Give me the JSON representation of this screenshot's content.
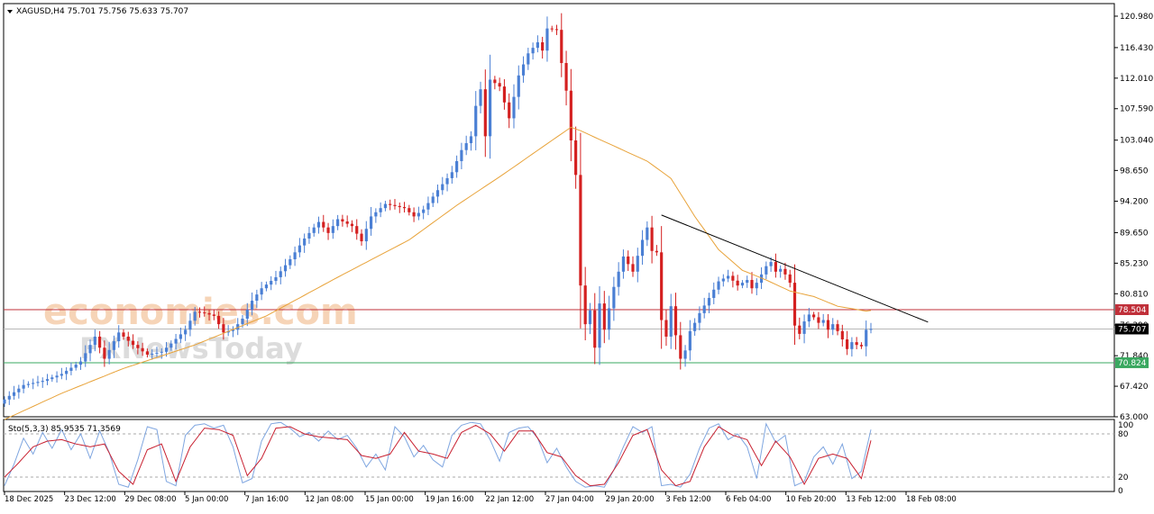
{
  "header": {
    "symbol_line": "XAGUSD,H4  75.701 75.756 75.633 75.707"
  },
  "watermarks": {
    "economies": "economies.com",
    "fxnews": "FXNewsToday"
  },
  "colors": {
    "bull": "#4a7fd4",
    "bear": "#d42020",
    "ma": "#e8a33a",
    "resistance": "#c0303a",
    "support": "#3aa860",
    "current": "#b8b8b8",
    "trendline": "#000000",
    "stoch_main": "#7fa6e0",
    "stoch_signal": "#c82030"
  },
  "chart_data": [
    {
      "type": "candlestick",
      "title": "XAGUSD,H4",
      "ohlc_header": {
        "open": 75.701,
        "high": 75.756,
        "low": 75.633,
        "close": 75.707
      },
      "ylim": [
        63.0,
        122.8
      ],
      "y_ticks": [
        "120.980",
        "116.430",
        "112.010",
        "107.590",
        "103.040",
        "98.650",
        "94.200",
        "89.650",
        "85.230",
        "80.810",
        "76.290",
        "71.840",
        "67.420",
        "63.000"
      ],
      "x_labels": [
        "18 Dec 2025",
        "23 Dec 12:00",
        "29 Dec 08:00",
        "5 Jan 00:00",
        "7 Jan 16:00",
        "12 Jan 08:00",
        "15 Jan 00:00",
        "19 Jan 16:00",
        "22 Jan 12:00",
        "27 Jan 04:00",
        "29 Jan 20:00",
        "3 Feb 12:00",
        "6 Feb 04:00",
        "10 Feb 20:00",
        "13 Feb 12:00",
        "18 Feb 08:00"
      ],
      "anchors": [
        [
          0,
          65.5
        ],
        [
          4,
          67.6
        ],
        [
          8,
          68.2
        ],
        [
          12,
          69.2
        ],
        [
          16,
          71.0
        ],
        [
          19,
          74.6
        ],
        [
          21,
          71.4
        ],
        [
          24,
          75.2
        ],
        [
          27,
          73.4
        ],
        [
          30,
          72.0
        ],
        [
          33,
          72.4
        ],
        [
          35,
          73.6
        ],
        [
          38,
          75.6
        ],
        [
          40,
          78.2
        ],
        [
          42,
          78.0
        ],
        [
          44,
          77.6
        ],
        [
          46,
          75.2
        ],
        [
          48,
          75.6
        ],
        [
          50,
          77.2
        ],
        [
          52,
          79.8
        ],
        [
          54,
          81.6
        ],
        [
          57,
          83.2
        ],
        [
          60,
          85.8
        ],
        [
          63,
          88.8
        ],
        [
          66,
          91.2
        ],
        [
          68,
          89.6
        ],
        [
          70,
          91.6
        ],
        [
          73,
          90.6
        ],
        [
          75,
          88.4
        ],
        [
          77,
          92.0
        ],
        [
          80,
          93.8
        ],
        [
          84,
          93.2
        ],
        [
          86,
          92.0
        ],
        [
          88,
          93.0
        ],
        [
          91,
          95.8
        ],
        [
          94,
          98.4
        ],
        [
          96,
          101.6
        ],
        [
          98,
          103.6
        ],
        [
          99,
          108.0
        ],
        [
          100,
          110.4
        ],
        [
          101,
          103.6
        ],
        [
          102,
          111.8
        ],
        [
          104,
          110.8
        ],
        [
          106,
          106.2
        ],
        [
          108,
          112.4
        ],
        [
          110,
          115.6
        ],
        [
          112,
          117.2
        ],
        [
          113,
          116.0
        ],
        [
          114,
          119.2
        ],
        [
          116,
          119.0
        ],
        [
          117,
          114.2
        ],
        [
          118,
          110.2
        ],
        [
          119,
          103.0
        ],
        [
          120,
          98.0
        ],
        [
          121,
          82.0
        ],
        [
          122,
          76.4
        ],
        [
          123,
          78.4
        ],
        [
          124,
          73.0
        ],
        [
          125,
          79.4
        ],
        [
          126,
          75.6
        ],
        [
          128,
          81.8
        ],
        [
          130,
          86.2
        ],
        [
          132,
          84.0
        ],
        [
          134,
          88.6
        ],
        [
          135,
          90.4
        ],
        [
          136,
          87.0
        ],
        [
          137,
          86.8
        ],
        [
          138,
          77.0
        ],
        [
          139,
          74.6
        ],
        [
          140,
          79.0
        ],
        [
          141,
          74.8
        ],
        [
          142,
          71.4
        ],
        [
          143,
          72.6
        ],
        [
          144,
          75.4
        ],
        [
          145,
          76.6
        ],
        [
          146,
          78.0
        ],
        [
          148,
          80.2
        ],
        [
          150,
          82.6
        ],
        [
          152,
          83.4
        ],
        [
          154,
          82.0
        ],
        [
          156,
          82.8
        ],
        [
          157,
          81.6
        ],
        [
          158,
          82.4
        ],
        [
          160,
          84.8
        ],
        [
          161,
          85.4
        ],
        [
          162,
          84.0
        ],
        [
          163,
          84.4
        ],
        [
          164,
          83.6
        ],
        [
          165,
          82.4
        ],
        [
          166,
          76.2
        ],
        [
          167,
          75.0
        ],
        [
          168,
          76.8
        ],
        [
          169,
          77.8
        ],
        [
          170,
          77.4
        ],
        [
          171,
          76.6
        ],
        [
          172,
          77.0
        ],
        [
          173,
          75.6
        ],
        [
          174,
          76.4
        ],
        [
          175,
          75.4
        ],
        [
          176,
          74.2
        ],
        [
          177,
          72.8
        ],
        [
          178,
          73.8
        ],
        [
          179,
          73.4
        ],
        [
          180,
          73.2
        ],
        [
          181,
          75.6
        ],
        [
          182,
          75.707
        ]
      ],
      "series": [
        {
          "name": "",
          "type": "ma",
          "values": [
            [
              0,
              62.6
            ],
            [
              12,
              66.4
            ],
            [
              25,
              70.0
            ],
            [
              40,
              73.4
            ],
            [
              55,
              77.6
            ],
            [
              70,
              83.2
            ],
            [
              85,
              88.6
            ],
            [
              95,
              93.6
            ],
            [
              105,
              98.2
            ],
            [
              115,
              103.0
            ],
            [
              119,
              104.9
            ],
            [
              121,
              104.4
            ],
            [
              128,
              102.2
            ],
            [
              135,
              100.0
            ],
            [
              140,
              97.5
            ],
            [
              145,
              92.0
            ],
            [
              150,
              87.2
            ],
            [
              155,
              84.2
            ],
            [
              160,
              82.8
            ],
            [
              165,
              81.2
            ],
            [
              170,
              80.4
            ],
            [
              175,
              79.0
            ],
            [
              181,
              78.3
            ]
          ]
        }
      ],
      "horizontal_lines": [
        {
          "label": "78.504",
          "value": 78.504,
          "role": "resistance"
        },
        {
          "label": "75.707",
          "value": 75.707,
          "role": "current"
        },
        {
          "label": "70.824",
          "value": 70.824,
          "role": "support"
        }
      ],
      "trendline": {
        "from": [
          138,
          92.2
        ],
        "to": [
          194,
          76.7
        ]
      }
    },
    {
      "type": "line",
      "title": "Sto(5,3,3) 85.9535 71.3569",
      "ylim": [
        0,
        100
      ],
      "y_ticks": [
        "100",
        "80",
        "20",
        "0"
      ],
      "levels": [
        80,
        20
      ],
      "main_anchors": [
        [
          0,
          8
        ],
        [
          2,
          38
        ],
        [
          4,
          74
        ],
        [
          6,
          52
        ],
        [
          8,
          82
        ],
        [
          10,
          60
        ],
        [
          12,
          86
        ],
        [
          14,
          58
        ],
        [
          16,
          80
        ],
        [
          18,
          46
        ],
        [
          20,
          84
        ],
        [
          22,
          54
        ],
        [
          24,
          10
        ],
        [
          26,
          6
        ],
        [
          28,
          44
        ],
        [
          30,
          90
        ],
        [
          32,
          86
        ],
        [
          34,
          14
        ],
        [
          36,
          8
        ],
        [
          38,
          78
        ],
        [
          40,
          92
        ],
        [
          42,
          94
        ],
        [
          44,
          88
        ],
        [
          46,
          92
        ],
        [
          48,
          62
        ],
        [
          50,
          12
        ],
        [
          52,
          18
        ],
        [
          54,
          70
        ],
        [
          56,
          94
        ],
        [
          58,
          96
        ],
        [
          60,
          88
        ],
        [
          62,
          76
        ],
        [
          64,
          82
        ],
        [
          66,
          70
        ],
        [
          68,
          84
        ],
        [
          70,
          72
        ],
        [
          72,
          78
        ],
        [
          74,
          60
        ],
        [
          76,
          34
        ],
        [
          78,
          52
        ],
        [
          80,
          30
        ],
        [
          82,
          90
        ],
        [
          84,
          76
        ],
        [
          86,
          48
        ],
        [
          88,
          64
        ],
        [
          90,
          44
        ],
        [
          92,
          34
        ],
        [
          94,
          78
        ],
        [
          96,
          92
        ],
        [
          98,
          96
        ],
        [
          100,
          94
        ],
        [
          102,
          72
        ],
        [
          104,
          42
        ],
        [
          106,
          82
        ],
        [
          108,
          88
        ],
        [
          110,
          90
        ],
        [
          112,
          74
        ],
        [
          114,
          40
        ],
        [
          116,
          60
        ],
        [
          118,
          34
        ],
        [
          120,
          14
        ],
        [
          122,
          6
        ],
        [
          124,
          8
        ],
        [
          126,
          6
        ],
        [
          128,
          30
        ],
        [
          130,
          62
        ],
        [
          132,
          90
        ],
        [
          134,
          82
        ],
        [
          136,
          90
        ],
        [
          138,
          8
        ],
        [
          140,
          10
        ],
        [
          142,
          6
        ],
        [
          144,
          24
        ],
        [
          146,
          60
        ],
        [
          148,
          88
        ],
        [
          150,
          94
        ],
        [
          152,
          72
        ],
        [
          154,
          80
        ],
        [
          156,
          62
        ],
        [
          158,
          18
        ],
        [
          160,
          94
        ],
        [
          162,
          68
        ],
        [
          164,
          78
        ],
        [
          166,
          8
        ],
        [
          168,
          14
        ],
        [
          170,
          48
        ],
        [
          172,
          62
        ],
        [
          174,
          38
        ],
        [
          176,
          66
        ],
        [
          178,
          18
        ],
        [
          180,
          28
        ],
        [
          182,
          86
        ]
      ],
      "signal_anchors": [
        [
          0,
          20
        ],
        [
          3,
          40
        ],
        [
          6,
          62
        ],
        [
          9,
          70
        ],
        [
          12,
          72
        ],
        [
          15,
          66
        ],
        [
          18,
          62
        ],
        [
          21,
          66
        ],
        [
          24,
          28
        ],
        [
          27,
          10
        ],
        [
          30,
          58
        ],
        [
          33,
          66
        ],
        [
          36,
          14
        ],
        [
          39,
          62
        ],
        [
          42,
          88
        ],
        [
          45,
          86
        ],
        [
          48,
          78
        ],
        [
          51,
          22
        ],
        [
          54,
          46
        ],
        [
          57,
          88
        ],
        [
          60,
          90
        ],
        [
          63,
          80
        ],
        [
          66,
          76
        ],
        [
          69,
          74
        ],
        [
          72,
          72
        ],
        [
          75,
          50
        ],
        [
          78,
          46
        ],
        [
          81,
          52
        ],
        [
          84,
          82
        ],
        [
          87,
          56
        ],
        [
          90,
          52
        ],
        [
          93,
          46
        ],
        [
          96,
          82
        ],
        [
          99,
          92
        ],
        [
          102,
          80
        ],
        [
          105,
          56
        ],
        [
          108,
          84
        ],
        [
          111,
          84
        ],
        [
          114,
          54
        ],
        [
          117,
          48
        ],
        [
          120,
          22
        ],
        [
          123,
          8
        ],
        [
          126,
          10
        ],
        [
          129,
          40
        ],
        [
          132,
          78
        ],
        [
          135,
          86
        ],
        [
          138,
          30
        ],
        [
          141,
          8
        ],
        [
          144,
          14
        ],
        [
          147,
          62
        ],
        [
          150,
          90
        ],
        [
          153,
          78
        ],
        [
          156,
          72
        ],
        [
          159,
          36
        ],
        [
          162,
          70
        ],
        [
          165,
          48
        ],
        [
          168,
          10
        ],
        [
          171,
          46
        ],
        [
          174,
          52
        ],
        [
          177,
          46
        ],
        [
          180,
          18
        ],
        [
          182,
          71
        ]
      ]
    }
  ]
}
